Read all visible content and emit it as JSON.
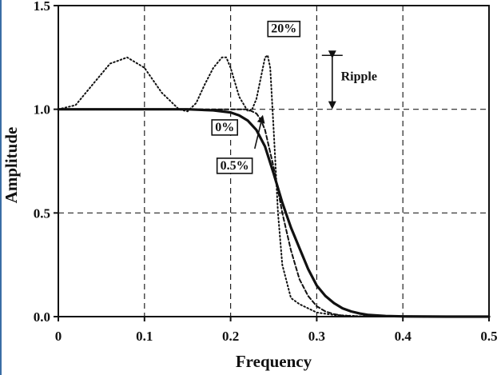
{
  "chart_data": {
    "type": "line",
    "title": "",
    "xlabel": "Frequency",
    "ylabel": "Amplitude",
    "xlim": [
      0,
      0.5
    ],
    "ylim": [
      0,
      1.5
    ],
    "x_ticks": [
      "0",
      "0.1",
      "0.2",
      "0.3",
      "0.4",
      "0.5"
    ],
    "y_ticks": [
      "0.0",
      "0.5",
      "1.0",
      "1.5"
    ],
    "grid": true,
    "colors": {
      "line": "#111111",
      "grid": "#222222",
      "frame": "#111111",
      "edge": "#3a6ea5"
    },
    "series": [
      {
        "name": "0%",
        "style": "solid",
        "x": [
          0,
          0.05,
          0.1,
          0.15,
          0.18,
          0.2,
          0.21,
          0.22,
          0.23,
          0.24,
          0.25,
          0.26,
          0.27,
          0.28,
          0.29,
          0.3,
          0.31,
          0.32,
          0.33,
          0.34,
          0.35,
          0.36,
          0.38,
          0.4,
          0.45,
          0.5
        ],
        "y": [
          1.0,
          1.0,
          1.0,
          1.0,
          0.995,
          0.985,
          0.97,
          0.945,
          0.9,
          0.82,
          0.69,
          0.55,
          0.43,
          0.33,
          0.23,
          0.15,
          0.1,
          0.065,
          0.04,
          0.025,
          0.015,
          0.008,
          0.003,
          0.001,
          0,
          0
        ]
      },
      {
        "name": "0.5%",
        "style": "dashed",
        "x": [
          0,
          0.1,
          0.2,
          0.21,
          0.22,
          0.23,
          0.235,
          0.24,
          0.25,
          0.26,
          0.27,
          0.28,
          0.29,
          0.3,
          0.31,
          0.32,
          0.33,
          0.35,
          0.4,
          0.5
        ],
        "y": [
          1.0,
          1.0,
          1.0,
          1.0,
          1.0,
          0.98,
          0.95,
          0.9,
          0.72,
          0.5,
          0.32,
          0.18,
          0.1,
          0.05,
          0.025,
          0.012,
          0.005,
          0.001,
          0,
          0
        ]
      },
      {
        "name": "20%",
        "style": "dotted",
        "x": [
          0,
          0.02,
          0.04,
          0.06,
          0.08,
          0.1,
          0.12,
          0.14,
          0.15,
          0.16,
          0.17,
          0.18,
          0.19,
          0.195,
          0.2,
          0.21,
          0.22,
          0.225,
          0.23,
          0.235,
          0.24,
          0.243,
          0.246,
          0.25,
          0.255,
          0.26,
          0.27,
          0.28,
          0.29,
          0.3,
          0.32,
          0.35,
          0.5
        ],
        "y": [
          1.0,
          1.02,
          1.12,
          1.22,
          1.25,
          1.2,
          1.08,
          1.0,
          0.99,
          1.03,
          1.12,
          1.2,
          1.25,
          1.25,
          1.2,
          1.06,
          0.99,
          1.0,
          1.05,
          1.15,
          1.25,
          1.26,
          1.2,
          0.9,
          0.5,
          0.25,
          0.09,
          0.06,
          0.04,
          0.02,
          0.008,
          0.002,
          0
        ]
      }
    ],
    "annotations": [
      {
        "text": "20%",
        "x": 0.247,
        "y": 1.37,
        "boxed": true
      },
      {
        "text": "Ripple",
        "x": 0.328,
        "y": 1.14,
        "boxed": false
      },
      {
        "text": "0%",
        "x": 0.182,
        "y": 0.895,
        "boxed": true
      },
      {
        "text": "0.5%",
        "x": 0.188,
        "y": 0.71,
        "boxed": true
      }
    ],
    "ripple_marker": {
      "x": 0.318,
      "y_top": 1.26,
      "y_bottom": 1.0
    }
  }
}
